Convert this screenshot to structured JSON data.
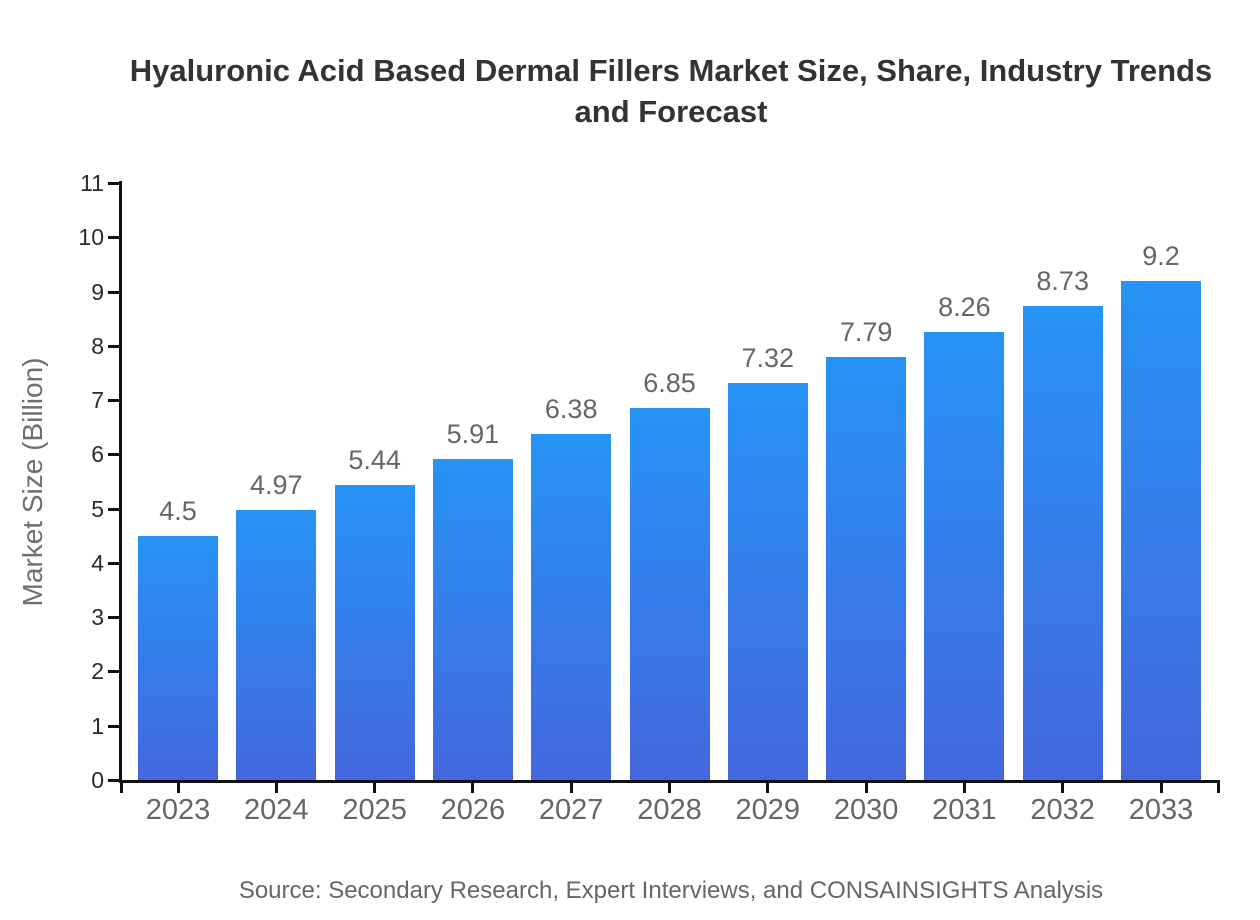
{
  "chart_data": {
    "type": "bar",
    "title": "Hyaluronic Acid Based Dermal Fillers Market Size, Share, Industry Trends and Forecast",
    "xlabel": "",
    "ylabel": "Market Size (Billion)",
    "categories": [
      "2023",
      "2024",
      "2025",
      "2026",
      "2027",
      "2028",
      "2029",
      "2030",
      "2031",
      "2032",
      "2033"
    ],
    "values": [
      4.5,
      4.97,
      5.44,
      5.91,
      6.38,
      6.85,
      7.32,
      7.79,
      8.26,
      8.73,
      9.2
    ],
    "value_labels": [
      "4.5",
      "4.97",
      "5.44",
      "5.91",
      "6.38",
      "6.85",
      "7.32",
      "7.79",
      "8.26",
      "8.73",
      "9.2"
    ],
    "ylim": [
      0,
      11
    ],
    "yticks": [
      0,
      1,
      2,
      3,
      4,
      5,
      6,
      7,
      8,
      9,
      10,
      11
    ],
    "grid": false,
    "legend": null,
    "bar_gradient_top": "#2693f5",
    "bar_gradient_bottom": "#4467de"
  },
  "source_note": "Source: Secondary Research, Expert Interviews, and CONSAINSIGHTS Analysis",
  "colors": {
    "title": "#333333",
    "axis": "#111111",
    "ytick_label": "#2b2b2b",
    "xtick_label": "#666666",
    "value_label": "#666666",
    "axis_label": "#6f6f6f",
    "source": "#666666",
    "background": "#ffffff"
  }
}
